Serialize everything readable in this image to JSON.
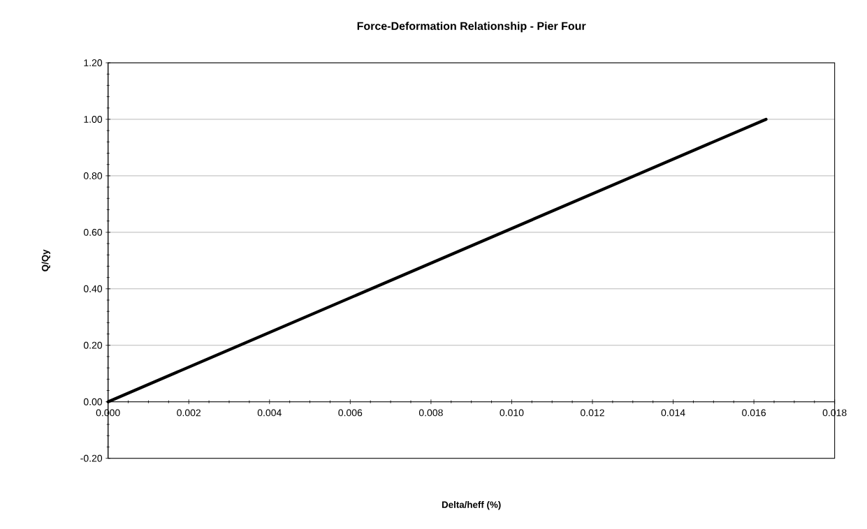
{
  "chart_data": {
    "type": "line",
    "title": "Force-Deformation Relationship - Pier Four",
    "xlabel": "Delta/heff (%)",
    "ylabel": "Q/Qy",
    "x": [
      0,
      0.0163
    ],
    "series": [
      {
        "color": "#000000",
        "values": [
          0,
          1.0
        ]
      }
    ],
    "xlim": [
      0,
      0.018
    ],
    "ylim": [
      -0.2,
      1.2
    ],
    "xticks": [
      {
        "value": 0,
        "label": "0.000"
      },
      {
        "value": 0.002,
        "label": "0.002"
      },
      {
        "value": 0.004,
        "label": "0.004"
      },
      {
        "value": 0.006,
        "label": "0.006"
      },
      {
        "value": 0.008,
        "label": "0.008"
      },
      {
        "value": 0.01,
        "label": "0.010"
      },
      {
        "value": 0.012,
        "label": "0.012"
      },
      {
        "value": 0.014,
        "label": "0.014"
      },
      {
        "value": 0.016,
        "label": "0.016"
      },
      {
        "value": 0.018,
        "label": "0.018"
      }
    ],
    "yticks": [
      {
        "value": -0.2,
        "label": "-0.20"
      },
      {
        "value": 0,
        "label": "0.00"
      },
      {
        "value": 0.2,
        "label": "0.20"
      },
      {
        "value": 0.4,
        "label": "0.40"
      },
      {
        "value": 0.6,
        "label": "0.60"
      },
      {
        "value": 0.8,
        "label": "0.80"
      },
      {
        "value": 1.0,
        "label": "1.00"
      },
      {
        "value": 1.2,
        "label": "1.20"
      }
    ],
    "grid": "y",
    "line_style": "solid"
  }
}
